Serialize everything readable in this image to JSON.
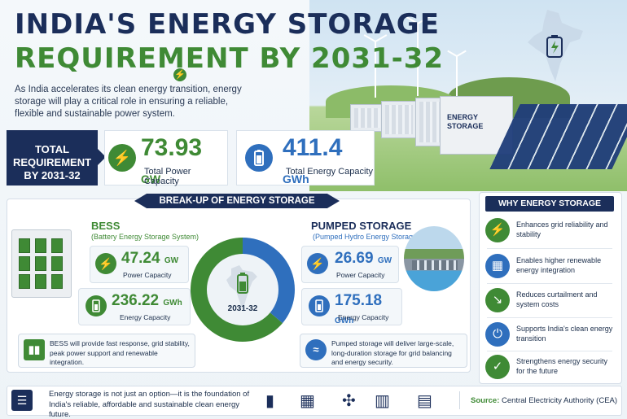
{
  "header": {
    "title_line1": "INDIA'S ENERGY STORAGE",
    "title_line2": "REQUIREMENT BY 2031-32",
    "intro": "As India accelerates its clean energy transition, energy storage will play a critical role in ensuring a reliable, flexible and sustainable power system."
  },
  "scene": {
    "container_label_line1": "ENERGY",
    "container_label_line2": "STORAGE"
  },
  "total": {
    "label_line1": "TOTAL",
    "label_line2": "REQUIREMENT",
    "label_line3": "BY 2031-32",
    "power_value": "73.93",
    "power_unit": "GW",
    "power_label": "Total Power Capacity",
    "energy_value": "411.4",
    "energy_unit": "GWh",
    "energy_label": "Total Energy Capacity"
  },
  "breakup": {
    "title": "BREAK-UP OF ENERGY STORAGE REQUIREMENT",
    "center_label": "2031-32",
    "bess": {
      "title": "BESS",
      "subtitle": "(Battery Energy Storage System)",
      "power_value": "47.24",
      "power_unit": "GW",
      "power_label": "Power Capacity",
      "energy_value": "236.22",
      "energy_unit": "GWh",
      "energy_label": "Energy Capacity",
      "note": "BESS will provide fast response, grid stability, peak power support and renewable integration."
    },
    "pumped": {
      "title": "PUMPED STORAGE",
      "subtitle": "(Pumped Hydro Energy Storage)",
      "power_value": "26.69",
      "power_unit": "GW",
      "power_label": "Power Capacity",
      "energy_value": "175.18",
      "energy_unit": "GWh",
      "energy_label": "Energy Capacity",
      "note": "Pumped storage will deliver large-scale, long-duration storage for grid balancing and energy security."
    },
    "donut": {
      "bess_power_gw": 47.24,
      "pumped_power_gw": 26.69,
      "bess_color": "#3f8a35",
      "pumped_color": "#2f6fbd"
    }
  },
  "why": {
    "title": "WHY ENERGY STORAGE MATTERS",
    "items": [
      {
        "text": "Enhances grid reliability and stability",
        "icon": "transmission-tower-icon",
        "color": "#3f8a35"
      },
      {
        "text": "Enables higher renewable energy integration",
        "icon": "solar-panel-icon",
        "color": "#2f6fbd"
      },
      {
        "text": "Reduces curtailment and system costs",
        "icon": "chart-down-icon",
        "color": "#3f8a35"
      },
      {
        "text": "Supports India's clean energy transition",
        "icon": "plug-icon",
        "color": "#2f6fbd"
      },
      {
        "text": "Strengthens energy security for the future",
        "icon": "shield-check-icon",
        "color": "#3f8a35"
      }
    ]
  },
  "footer": {
    "message": "Energy storage is not just an option—it is the foundation of India's reliable, affordable and sustainable clean energy future.",
    "source_label": "Source:",
    "source_value": "Central Electricity Authority (CEA)"
  },
  "colors": {
    "navy": "#1b2e5a",
    "green": "#3f8a35",
    "blue": "#2f6fbd"
  }
}
